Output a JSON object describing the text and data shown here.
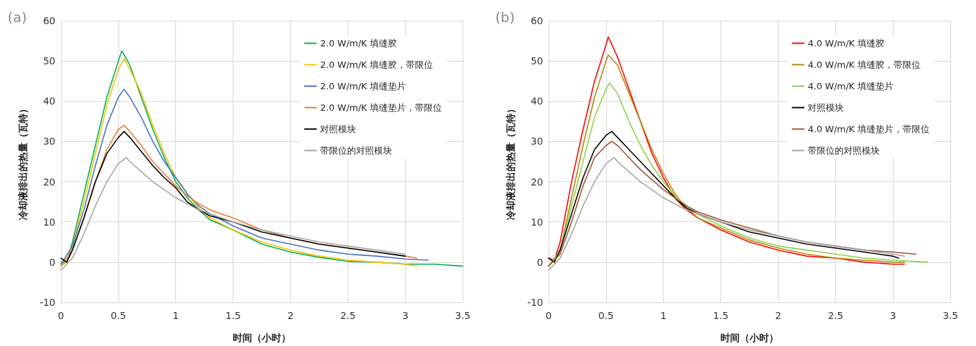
{
  "chart_data": [
    {
      "type": "line",
      "title": "(a)",
      "xlabel": "时间（小时）",
      "ylabel": "冷却液排出的热量（瓦特）",
      "xlim": [
        0,
        3.5
      ],
      "xticks": [
        0,
        0.5,
        1,
        1.5,
        2,
        2.5,
        3,
        3.5
      ],
      "ylim": [
        -10,
        60
      ],
      "yticks": [
        -10,
        0,
        10,
        20,
        30,
        40,
        50,
        60
      ],
      "grid": true,
      "legend": "top right",
      "marker": "none",
      "line_style": "solid",
      "series": [
        {
          "name": "2.0 W/m/K 填缝胶",
          "color": "#00b050",
          "x": [
            0,
            0.05,
            0.1,
            0.2,
            0.3,
            0.4,
            0.5,
            0.53,
            0.6,
            0.7,
            0.8,
            0.9,
            1.0,
            1.1,
            1.2,
            1.3,
            1.5,
            1.75,
            2,
            2.25,
            2.5,
            2.75,
            3,
            3.25,
            3.5
          ],
          "values": [
            0,
            0,
            5,
            17,
            29,
            41,
            50,
            52.5,
            49,
            41,
            33,
            26,
            20,
            16,
            13,
            10.5,
            8,
            4.5,
            2.5,
            1.2,
            0.2,
            0,
            -0.5,
            -0.5,
            -1
          ]
        },
        {
          "name": "2.0 W/m/K 填缝胶，带限位",
          "color": "#ffc000",
          "x": [
            0,
            0.05,
            0.1,
            0.2,
            0.3,
            0.4,
            0.5,
            0.55,
            0.6,
            0.7,
            0.8,
            0.9,
            1.0,
            1.1,
            1.2,
            1.3,
            1.5,
            1.75,
            2,
            2.25,
            2.5,
            2.75,
            3,
            3.1
          ],
          "values": [
            -1,
            0,
            4,
            15,
            27,
            39,
            48,
            50.5,
            48,
            42,
            34,
            27,
            21,
            17,
            13.5,
            11,
            8,
            5,
            3,
            1.5,
            0.5,
            0,
            -0.5,
            -1
          ]
        },
        {
          "name": "2.0 W/m/K 填缝垫片",
          "color": "#4472c4",
          "x": [
            0,
            0.1,
            0.2,
            0.3,
            0.4,
            0.5,
            0.55,
            0.6,
            0.7,
            0.8,
            0.9,
            1.0,
            1.1,
            1.2,
            1.3,
            1.5,
            1.75,
            2,
            2.25,
            2.5,
            2.75,
            3,
            3.2
          ],
          "values": [
            -0.5,
            4,
            13,
            24,
            34,
            41,
            43,
            41,
            36,
            30,
            25,
            21,
            17,
            14,
            12,
            9,
            6,
            4.5,
            3,
            2,
            1.5,
            0.8,
            0.5
          ]
        },
        {
          "name": "2.0 W/m/K 填缝垫片，带限位",
          "color": "#ed7d31",
          "x": [
            0,
            0.1,
            0.2,
            0.3,
            0.4,
            0.5,
            0.55,
            0.6,
            0.7,
            0.8,
            0.9,
            1.0,
            1.1,
            1.2,
            1.3,
            1.5,
            1.75,
            2,
            2.25,
            2.5,
            2.75,
            3,
            3.1
          ],
          "values": [
            -1,
            3,
            11,
            20,
            28,
            33,
            34,
            32.5,
            29,
            25,
            22,
            19,
            16.5,
            14.5,
            13,
            11,
            8,
            6,
            4.5,
            3.5,
            2.5,
            1.5,
            1
          ]
        },
        {
          "name": "对照模块",
          "color": "#000000",
          "x": [
            0,
            0.05,
            0.1,
            0.2,
            0.3,
            0.4,
            0.5,
            0.55,
            0.6,
            0.7,
            0.8,
            0.9,
            1.0,
            1.1,
            1.2,
            1.3,
            1.5,
            1.75,
            2,
            2.25,
            2.5,
            2.75,
            3
          ],
          "values": [
            1,
            0,
            3,
            11,
            20,
            27,
            31,
            32.5,
            31,
            27.5,
            24,
            21,
            18.5,
            15,
            13,
            11.5,
            10,
            7.5,
            6,
            4.5,
            3.5,
            2.5,
            1.5
          ]
        },
        {
          "name": "带限位的对照模块",
          "color": "#a5a5a5",
          "x": [
            0,
            0.1,
            0.2,
            0.3,
            0.4,
            0.5,
            0.57,
            0.6,
            0.7,
            0.8,
            0.9,
            1.0,
            1.1,
            1.2,
            1.3,
            1.5,
            1.75,
            2,
            2.25,
            2.5,
            2.75,
            3
          ],
          "values": [
            -2,
            1,
            7,
            14,
            20,
            24.5,
            26,
            25,
            22.5,
            20,
            18,
            16,
            14.5,
            13,
            12,
            10,
            8,
            6.5,
            5,
            4,
            3,
            2
          ]
        }
      ]
    },
    {
      "type": "line",
      "title": "(b)",
      "xlabel": "时间（小时）",
      "ylabel": "冷却液排出的热量（瓦特）",
      "xlim": [
        0,
        3.5
      ],
      "xticks": [
        0,
        0.5,
        1,
        1.5,
        2,
        2.5,
        3,
        3.5
      ],
      "ylim": [
        -10,
        60
      ],
      "yticks": [
        -10,
        0,
        10,
        20,
        30,
        40,
        50,
        60
      ],
      "grid": true,
      "legend": "top right",
      "marker": "none",
      "line_style": "solid",
      "series": [
        {
          "name": "4.0 W/m/K 填缝胶",
          "color": "#ff0000",
          "x": [
            0,
            0.05,
            0.1,
            0.2,
            0.3,
            0.4,
            0.5,
            0.52,
            0.6,
            0.7,
            0.8,
            0.9,
            1.0,
            1.1,
            1.2,
            1.3,
            1.5,
            1.75,
            2,
            2.25,
            2.5,
            2.75,
            3,
            3.1
          ],
          "values": [
            1,
            0.5,
            5,
            20,
            33,
            45,
            54,
            56,
            51,
            43,
            35,
            27,
            21,
            16,
            13,
            11,
            8,
            5,
            3,
            1.5,
            1,
            0,
            -0.5,
            -0.5
          ]
        },
        {
          "name": "4.0 W/m/K 填缝胶，带限位",
          "color": "#b8860b",
          "x": [
            0,
            0.1,
            0.2,
            0.3,
            0.4,
            0.5,
            0.52,
            0.6,
            0.7,
            0.8,
            0.9,
            1.0,
            1.1,
            1.2,
            1.3,
            1.5,
            1.75,
            2,
            2.25,
            2.5,
            2.75,
            3,
            3.1
          ],
          "values": [
            -1,
            3,
            16,
            29,
            41,
            50,
            51.5,
            49,
            42,
            35,
            28,
            22,
            17,
            13.5,
            11,
            8.5,
            5.5,
            3.5,
            2,
            1,
            0.5,
            0,
            0
          ]
        },
        {
          "name": "4.0 W/m/K 填缝垫片",
          "color": "#92d050",
          "x": [
            0,
            0.1,
            0.2,
            0.3,
            0.4,
            0.5,
            0.53,
            0.6,
            0.7,
            0.8,
            0.9,
            1.0,
            1.1,
            1.2,
            1.3,
            1.5,
            1.75,
            2,
            2.25,
            2.5,
            2.75,
            3,
            3.3
          ],
          "values": [
            -1,
            3,
            14,
            25,
            36,
            43,
            44.5,
            42,
            35,
            29,
            24,
            20,
            16.5,
            14,
            12,
            9,
            6,
            4,
            3,
            2,
            1,
            0.5,
            0
          ]
        },
        {
          "name": "对照模块",
          "color": "#000000",
          "x": [
            0,
            0.05,
            0.1,
            0.2,
            0.3,
            0.4,
            0.5,
            0.55,
            0.6,
            0.7,
            0.8,
            0.9,
            1.0,
            1.1,
            1.2,
            1.3,
            1.5,
            1.75,
            2,
            2.25,
            2.5,
            2.75,
            3,
            3.05
          ],
          "values": [
            1,
            0,
            3,
            12,
            21,
            28,
            31.5,
            32.5,
            31,
            28,
            25,
            22,
            19,
            16,
            13.5,
            12,
            10,
            7.5,
            6,
            4.5,
            3.5,
            2.5,
            1.5,
            1
          ]
        },
        {
          "name": "4.0 W/m/K 填缝垫片，带限位",
          "color": "#a0522d",
          "x": [
            0,
            0.1,
            0.2,
            0.3,
            0.4,
            0.5,
            0.55,
            0.6,
            0.7,
            0.8,
            0.9,
            1.0,
            1.1,
            1.2,
            1.3,
            1.5,
            1.75,
            2,
            2.25,
            2.5,
            2.75,
            3,
            3.2
          ],
          "values": [
            -1,
            2,
            10,
            19,
            26,
            29,
            30,
            29,
            26,
            23,
            20.5,
            18,
            16,
            14,
            12.5,
            10.5,
            8.5,
            6.5,
            5,
            4,
            3,
            2.5,
            2
          ]
        },
        {
          "name": "带限位的对照模块",
          "color": "#a5a5a5",
          "x": [
            0,
            0.1,
            0.2,
            0.3,
            0.4,
            0.5,
            0.57,
            0.6,
            0.7,
            0.8,
            0.9,
            1.0,
            1.1,
            1.2,
            1.3,
            1.5,
            1.75,
            2,
            2.25,
            2.5,
            2.75,
            3,
            3.1
          ],
          "values": [
            -2,
            1,
            7,
            14,
            20,
            24.5,
            26,
            25,
            22.5,
            20,
            18,
            16,
            14.5,
            13,
            12,
            10,
            8,
            6.5,
            5,
            4,
            3,
            2,
            1.5
          ]
        }
      ]
    }
  ]
}
